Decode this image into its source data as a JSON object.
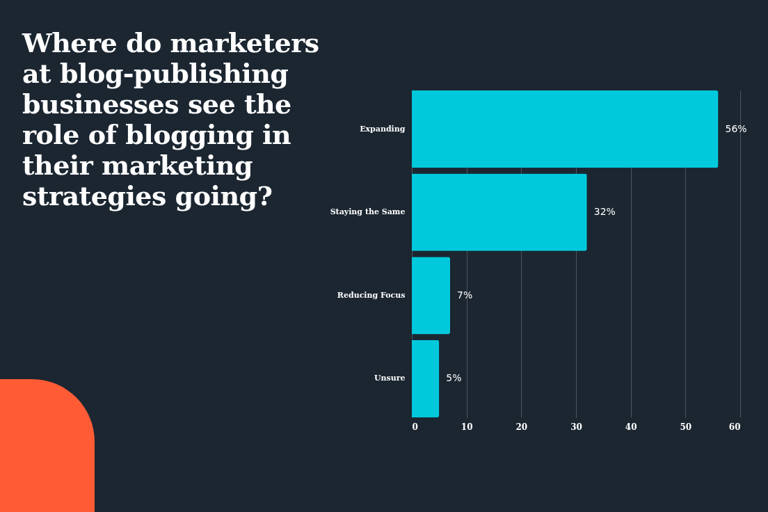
{
  "chart_data": {
    "type": "bar",
    "title": "Where do marketers at blog-publishing businesses see the role of blogging in their marketing strategies going?",
    "orientation": "horizontal",
    "categories": [
      "Expanding",
      "Staying the Same",
      "Reducing Focus",
      "Unsure"
    ],
    "values": [
      56,
      32,
      7,
      5
    ],
    "value_labels": [
      "56%",
      "32%",
      "7%",
      "5%"
    ],
    "color": "#00c9dc",
    "xlim": [
      0,
      60
    ],
    "xticks": [
      0,
      10,
      20,
      30,
      40,
      50,
      60
    ],
    "grid": "x"
  }
}
